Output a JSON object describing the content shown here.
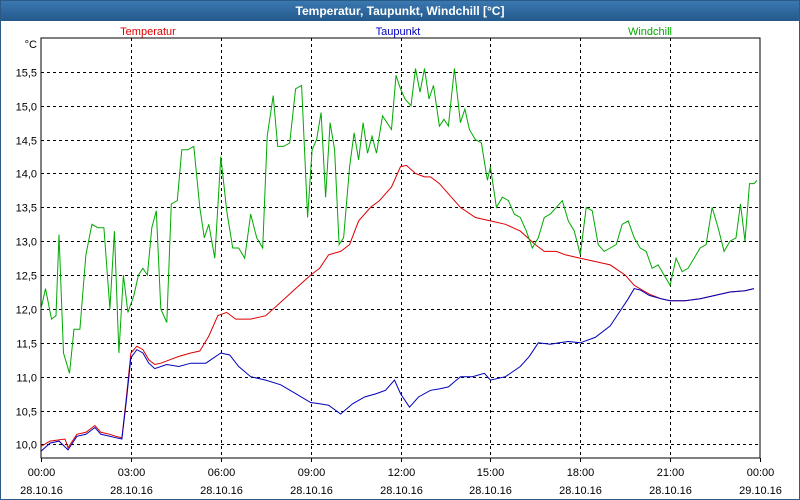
{
  "chart_data": {
    "type": "line",
    "title": "Temperatur, Taupunkt, Windchill [°C]",
    "ylabel": "°C",
    "xlabel": "",
    "ylim": [
      9.8,
      16.0
    ],
    "xlim": [
      0,
      24
    ],
    "grid": true,
    "legend_position": "top",
    "yticks": [
      10.0,
      10.5,
      11.0,
      11.5,
      12.0,
      12.5,
      13.0,
      13.5,
      14.0,
      14.5,
      15.0,
      15.5
    ],
    "ytick_labels": [
      "10,0",
      "10,5",
      "11,0",
      "11,5",
      "12,0",
      "12,5",
      "13,0",
      "13,5",
      "14,0",
      "14,5",
      "15,0",
      "15,5"
    ],
    "xticks": [
      {
        "x": 0,
        "time": "00:00",
        "date": "28.10.16"
      },
      {
        "x": 3,
        "time": "03:00",
        "date": "28.10.16"
      },
      {
        "x": 6,
        "time": "06:00",
        "date": "28.10.16"
      },
      {
        "x": 9,
        "time": "09:00",
        "date": "28.10.16"
      },
      {
        "x": 12,
        "time": "12:00",
        "date": "28.10.16"
      },
      {
        "x": 15,
        "time": "15:00",
        "date": "28.10.16"
      },
      {
        "x": 18,
        "time": "18:00",
        "date": "28.10.16"
      },
      {
        "x": 21,
        "time": "21:00",
        "date": "28.10.16"
      },
      {
        "x": 24,
        "time": "00:00",
        "date": "29.10.16"
      }
    ],
    "series": [
      {
        "name": "Temperatur",
        "color": "#dd0000",
        "points": [
          [
            0,
            9.97
          ],
          [
            0.3,
            10.05
          ],
          [
            0.8,
            10.08
          ],
          [
            0.9,
            9.95
          ],
          [
            1.2,
            10.15
          ],
          [
            1.5,
            10.18
          ],
          [
            1.8,
            10.28
          ],
          [
            2.0,
            10.18
          ],
          [
            2.3,
            10.15
          ],
          [
            2.5,
            10.12
          ],
          [
            2.7,
            10.1
          ],
          [
            2.85,
            10.7
          ],
          [
            3.0,
            11.35
          ],
          [
            3.2,
            11.45
          ],
          [
            3.4,
            11.4
          ],
          [
            3.6,
            11.25
          ],
          [
            3.8,
            11.18
          ],
          [
            4.0,
            11.2
          ],
          [
            4.3,
            11.25
          ],
          [
            4.6,
            11.3
          ],
          [
            5.0,
            11.35
          ],
          [
            5.3,
            11.38
          ],
          [
            5.6,
            11.6
          ],
          [
            5.9,
            11.9
          ],
          [
            6.2,
            11.95
          ],
          [
            6.5,
            11.85
          ],
          [
            7.0,
            11.85
          ],
          [
            7.5,
            11.9
          ],
          [
            8.0,
            12.1
          ],
          [
            8.5,
            12.3
          ],
          [
            9.0,
            12.5
          ],
          [
            9.3,
            12.6
          ],
          [
            9.6,
            12.8
          ],
          [
            10.0,
            12.85
          ],
          [
            10.3,
            12.95
          ],
          [
            10.6,
            13.3
          ],
          [
            11.0,
            13.5
          ],
          [
            11.3,
            13.6
          ],
          [
            11.7,
            13.8
          ],
          [
            12.0,
            14.1
          ],
          [
            12.2,
            14.12
          ],
          [
            12.5,
            14.0
          ],
          [
            12.8,
            13.95
          ],
          [
            13.0,
            13.95
          ],
          [
            13.3,
            13.85
          ],
          [
            13.6,
            13.7
          ],
          [
            14.0,
            13.5
          ],
          [
            14.5,
            13.35
          ],
          [
            15.0,
            13.3
          ],
          [
            15.5,
            13.25
          ],
          [
            16.0,
            13.15
          ],
          [
            16.5,
            12.95
          ],
          [
            16.8,
            12.85
          ],
          [
            17.2,
            12.85
          ],
          [
            17.5,
            12.8
          ],
          [
            18.0,
            12.75
          ],
          [
            18.5,
            12.7
          ],
          [
            19.0,
            12.65
          ],
          [
            19.5,
            12.5
          ],
          [
            19.8,
            12.35
          ],
          [
            20.3,
            12.22
          ],
          [
            20.7,
            12.15
          ],
          [
            21.0,
            12.12
          ],
          [
            21.5,
            12.12
          ],
          [
            22.0,
            12.15
          ],
          [
            22.5,
            12.2
          ],
          [
            23.0,
            12.25
          ],
          [
            23.5,
            12.27
          ],
          [
            23.8,
            12.3
          ]
        ]
      },
      {
        "name": "Taupunkt",
        "color": "#0000bb",
        "points": [
          [
            0,
            9.9
          ],
          [
            0.3,
            10.02
          ],
          [
            0.6,
            10.05
          ],
          [
            0.9,
            9.92
          ],
          [
            1.2,
            10.12
          ],
          [
            1.5,
            10.15
          ],
          [
            1.8,
            10.25
          ],
          [
            2.0,
            10.15
          ],
          [
            2.3,
            10.12
          ],
          [
            2.5,
            10.1
          ],
          [
            2.7,
            10.08
          ],
          [
            2.85,
            10.65
          ],
          [
            3.0,
            11.28
          ],
          [
            3.2,
            11.4
          ],
          [
            3.4,
            11.35
          ],
          [
            3.6,
            11.2
          ],
          [
            3.8,
            11.12
          ],
          [
            4.2,
            11.18
          ],
          [
            4.6,
            11.15
          ],
          [
            5.0,
            11.2
          ],
          [
            5.5,
            11.2
          ],
          [
            6.0,
            11.35
          ],
          [
            6.3,
            11.32
          ],
          [
            6.6,
            11.15
          ],
          [
            7.0,
            11.0
          ],
          [
            7.5,
            10.95
          ],
          [
            8.0,
            10.88
          ],
          [
            8.5,
            10.75
          ],
          [
            9.0,
            10.62
          ],
          [
            9.3,
            10.6
          ],
          [
            9.6,
            10.58
          ],
          [
            10.0,
            10.45
          ],
          [
            10.4,
            10.6
          ],
          [
            10.8,
            10.7
          ],
          [
            11.2,
            10.75
          ],
          [
            11.5,
            10.8
          ],
          [
            11.8,
            10.95
          ],
          [
            12.0,
            10.75
          ],
          [
            12.3,
            10.55
          ],
          [
            12.6,
            10.7
          ],
          [
            13.0,
            10.8
          ],
          [
            13.3,
            10.82
          ],
          [
            13.6,
            10.85
          ],
          [
            14.0,
            11.0
          ],
          [
            14.4,
            11.0
          ],
          [
            14.8,
            11.05
          ],
          [
            15.0,
            10.95
          ],
          [
            15.5,
            11.0
          ],
          [
            16.0,
            11.15
          ],
          [
            16.3,
            11.3
          ],
          [
            16.6,
            11.5
          ],
          [
            17.0,
            11.48
          ],
          [
            17.3,
            11.5
          ],
          [
            17.6,
            11.52
          ],
          [
            18.0,
            11.5
          ],
          [
            18.5,
            11.58
          ],
          [
            19.0,
            11.75
          ],
          [
            19.3,
            11.95
          ],
          [
            19.6,
            12.15
          ],
          [
            19.8,
            12.3
          ],
          [
            20.0,
            12.28
          ],
          [
            20.3,
            12.2
          ],
          [
            20.7,
            12.15
          ],
          [
            21.0,
            12.12
          ],
          [
            21.5,
            12.12
          ],
          [
            22.0,
            12.15
          ],
          [
            22.5,
            12.2
          ],
          [
            23.0,
            12.25
          ],
          [
            23.5,
            12.27
          ],
          [
            23.8,
            12.3
          ]
        ]
      },
      {
        "name": "Windchill",
        "color": "#00aa00",
        "points": [
          [
            0,
            12.0
          ],
          [
            0.15,
            12.3
          ],
          [
            0.35,
            11.85
          ],
          [
            0.5,
            11.9
          ],
          [
            0.6,
            13.1
          ],
          [
            0.75,
            11.35
          ],
          [
            0.95,
            11.05
          ],
          [
            1.1,
            11.7
          ],
          [
            1.3,
            11.7
          ],
          [
            1.5,
            12.8
          ],
          [
            1.7,
            13.25
          ],
          [
            1.9,
            13.2
          ],
          [
            2.1,
            13.2
          ],
          [
            2.3,
            12.0
          ],
          [
            2.45,
            13.15
          ],
          [
            2.6,
            11.35
          ],
          [
            2.75,
            12.5
          ],
          [
            2.9,
            11.95
          ],
          [
            3.1,
            12.2
          ],
          [
            3.25,
            12.5
          ],
          [
            3.4,
            12.6
          ],
          [
            3.55,
            12.5
          ],
          [
            3.7,
            13.2
          ],
          [
            3.85,
            13.45
          ],
          [
            4.0,
            12.0
          ],
          [
            4.2,
            11.8
          ],
          [
            4.35,
            13.55
          ],
          [
            4.55,
            13.6
          ],
          [
            4.7,
            14.35
          ],
          [
            4.9,
            14.35
          ],
          [
            5.1,
            14.4
          ],
          [
            5.3,
            13.5
          ],
          [
            5.45,
            13.05
          ],
          [
            5.6,
            13.25
          ],
          [
            5.8,
            12.75
          ],
          [
            6.0,
            14.25
          ],
          [
            6.2,
            13.45
          ],
          [
            6.4,
            12.9
          ],
          [
            6.6,
            12.9
          ],
          [
            6.8,
            12.75
          ],
          [
            7.0,
            13.4
          ],
          [
            7.2,
            13.05
          ],
          [
            7.4,
            12.9
          ],
          [
            7.55,
            14.55
          ],
          [
            7.75,
            15.15
          ],
          [
            7.9,
            14.4
          ],
          [
            8.1,
            14.4
          ],
          [
            8.3,
            14.45
          ],
          [
            8.5,
            15.25
          ],
          [
            8.7,
            15.3
          ],
          [
            8.9,
            13.35
          ],
          [
            9.05,
            14.35
          ],
          [
            9.2,
            14.5
          ],
          [
            9.35,
            14.9
          ],
          [
            9.5,
            13.65
          ],
          [
            9.65,
            14.75
          ],
          [
            9.8,
            14.35
          ],
          [
            9.95,
            12.95
          ],
          [
            10.1,
            13.05
          ],
          [
            10.3,
            14.1
          ],
          [
            10.45,
            14.6
          ],
          [
            10.6,
            14.2
          ],
          [
            10.75,
            14.75
          ],
          [
            10.9,
            14.3
          ],
          [
            11.05,
            14.55
          ],
          [
            11.2,
            14.3
          ],
          [
            11.4,
            14.85
          ],
          [
            11.55,
            14.75
          ],
          [
            11.7,
            14.65
          ],
          [
            11.85,
            15.45
          ],
          [
            12.0,
            15.25
          ],
          [
            12.15,
            15.1
          ],
          [
            12.35,
            15.0
          ],
          [
            12.5,
            15.55
          ],
          [
            12.65,
            15.2
          ],
          [
            12.8,
            15.55
          ],
          [
            12.95,
            15.1
          ],
          [
            13.1,
            15.3
          ],
          [
            13.3,
            14.7
          ],
          [
            13.45,
            14.8
          ],
          [
            13.6,
            14.7
          ],
          [
            13.8,
            15.55
          ],
          [
            14.0,
            14.75
          ],
          [
            14.15,
            14.95
          ],
          [
            14.3,
            14.65
          ],
          [
            14.5,
            14.5
          ],
          [
            14.7,
            14.45
          ],
          [
            14.9,
            13.9
          ],
          [
            15.0,
            14.1
          ],
          [
            15.2,
            13.5
          ],
          [
            15.4,
            13.65
          ],
          [
            15.6,
            13.6
          ],
          [
            15.8,
            13.4
          ],
          [
            16.0,
            13.35
          ],
          [
            16.2,
            13.15
          ],
          [
            16.4,
            12.9
          ],
          [
            16.6,
            13.05
          ],
          [
            16.8,
            13.35
          ],
          [
            17.0,
            13.4
          ],
          [
            17.2,
            13.5
          ],
          [
            17.4,
            13.6
          ],
          [
            17.6,
            13.3
          ],
          [
            17.8,
            13.15
          ],
          [
            18.0,
            12.8
          ],
          [
            18.2,
            13.5
          ],
          [
            18.4,
            13.45
          ],
          [
            18.6,
            12.95
          ],
          [
            18.8,
            12.85
          ],
          [
            19.0,
            12.9
          ],
          [
            19.2,
            12.95
          ],
          [
            19.4,
            13.25
          ],
          [
            19.6,
            13.3
          ],
          [
            19.8,
            13.05
          ],
          [
            20.0,
            12.9
          ],
          [
            20.2,
            12.85
          ],
          [
            20.4,
            12.6
          ],
          [
            20.6,
            12.65
          ],
          [
            20.8,
            12.5
          ],
          [
            21.0,
            12.35
          ],
          [
            21.2,
            12.75
          ],
          [
            21.4,
            12.55
          ],
          [
            21.6,
            12.6
          ],
          [
            21.8,
            12.75
          ],
          [
            22.0,
            12.9
          ],
          [
            22.2,
            12.95
          ],
          [
            22.4,
            13.5
          ],
          [
            22.6,
            13.2
          ],
          [
            22.8,
            12.85
          ],
          [
            23.0,
            13.0
          ],
          [
            23.2,
            13.05
          ],
          [
            23.35,
            13.55
          ],
          [
            23.5,
            13.0
          ],
          [
            23.65,
            13.85
          ],
          [
            23.8,
            13.85
          ],
          [
            23.9,
            13.9
          ]
        ]
      }
    ]
  }
}
